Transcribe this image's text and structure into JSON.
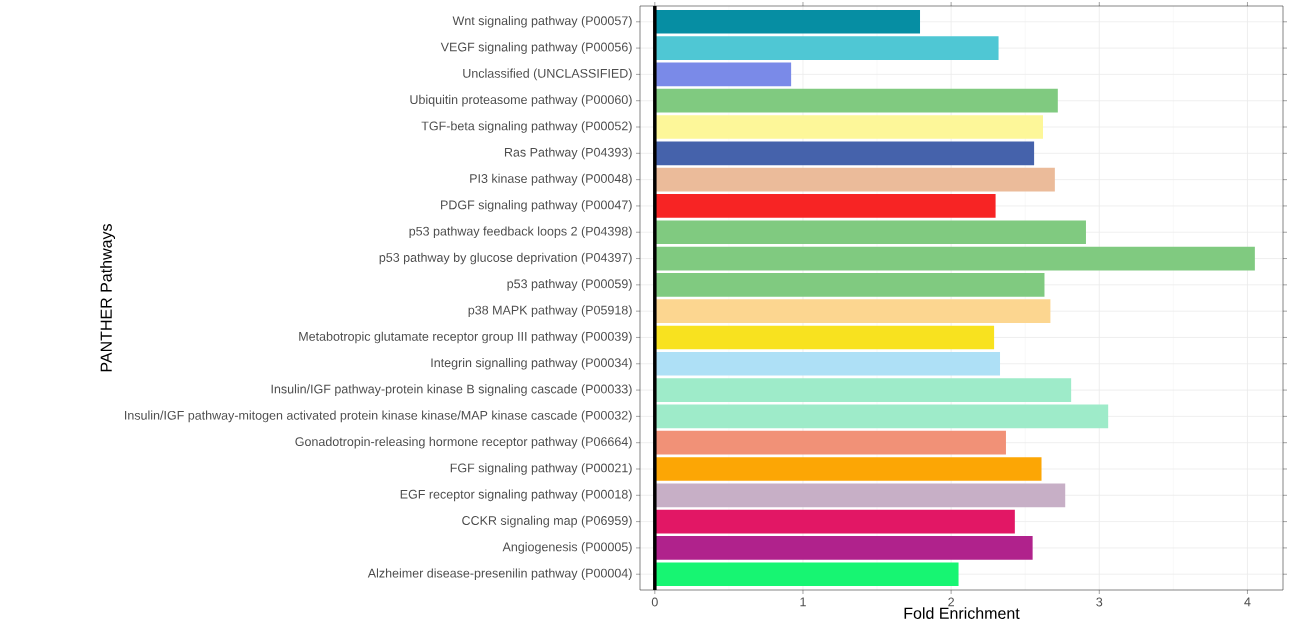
{
  "chart_data": {
    "type": "bar",
    "orientation": "horizontal",
    "xlabel": "Fold Enrichment",
    "ylabel": "PANTHER Pathways",
    "categories": [
      "Wnt signaling pathway (P00057)",
      "VEGF signaling pathway (P00056)",
      "Unclassified (UNCLASSIFIED)",
      "Ubiquitin proteasome pathway (P00060)",
      "TGF-beta signaling pathway (P00052)",
      "Ras Pathway (P04393)",
      "PI3 kinase pathway (P00048)",
      "PDGF signaling pathway (P00047)",
      "p53 pathway feedback loops 2 (P04398)",
      "p53 pathway by glucose deprivation (P04397)",
      "p53 pathway (P00059)",
      "p38 MAPK pathway (P05918)",
      "Metabotropic glutamate receptor group III pathway (P00039)",
      "Integrin signalling pathway (P00034)",
      "Insulin/IGF pathway-protein kinase B signaling cascade (P00033)",
      "Insulin/IGF pathway-mitogen activated protein kinase kinase/MAP kinase cascade (P00032)",
      "Gonadotropin-releasing hormone receptor pathway (P06664)",
      "FGF signaling pathway (P00021)",
      "EGF receptor signaling pathway (P00018)",
      "CCKR signaling map (P06959)",
      "Angiogenesis (P00005)",
      "Alzheimer disease-presenilin pathway (P00004)"
    ],
    "values": [
      1.79,
      2.32,
      0.92,
      2.72,
      2.62,
      2.56,
      2.7,
      2.3,
      2.91,
      4.05,
      2.63,
      2.67,
      2.29,
      2.33,
      2.81,
      3.06,
      2.37,
      2.61,
      2.77,
      2.43,
      2.55,
      2.05
    ],
    "colors": [
      "#068ea3",
      "#4fc7d4",
      "#7a8ae8",
      "#80ca80",
      "#fdf799",
      "#4562ab",
      "#ebbb9a",
      "#f72424",
      "#80ca80",
      "#80ca80",
      "#80ca80",
      "#fcd690",
      "#f8e21f",
      "#aee0f6",
      "#9eebc9",
      "#9eebc9",
      "#f19177",
      "#fca605",
      "#c7afc6",
      "#e21765",
      "#b0228c",
      "#17f572"
    ],
    "xlim": [
      -0.1,
      4.24
    ],
    "xticks": [
      0,
      1,
      2,
      3,
      4
    ],
    "grid": true,
    "ref_lines": [
      {
        "axis": "x",
        "value": 0,
        "color": "#000000"
      }
    ]
  }
}
